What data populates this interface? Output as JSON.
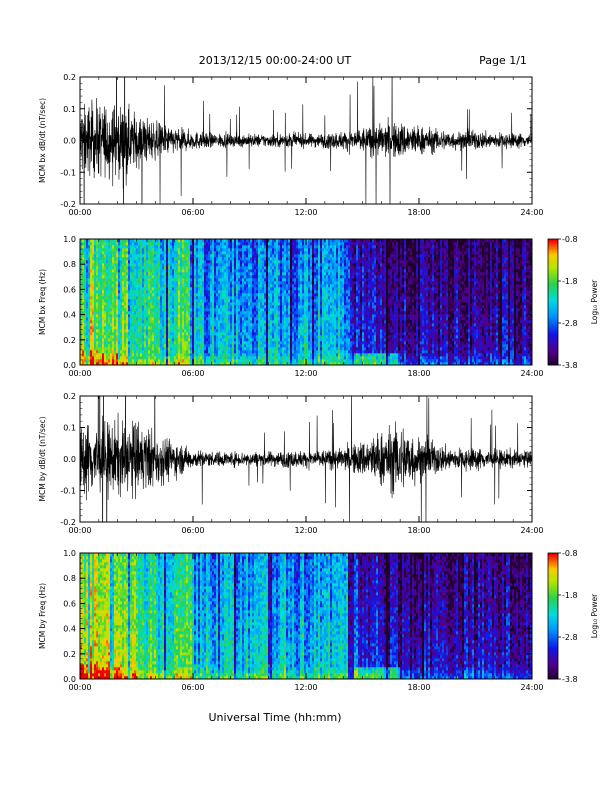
{
  "header": {
    "date_title": "2013/12/15  00:00-24:00 UT",
    "page_label": "Page 1/1"
  },
  "x_axis_title": "Universal Time (hh:mm)",
  "chart_data": [
    {
      "type": "line",
      "ylabel": "MCM bx dB/dt (nT/sec)",
      "xlim": [
        "00:00",
        "24:00"
      ],
      "x_ticks": [
        "00:00",
        "06:00",
        "12:00",
        "18:00",
        "24:00"
      ],
      "ylim": [
        -0.2,
        0.2
      ],
      "y_ticks": [
        "-0.2",
        "-0.1",
        "0.0",
        "0.1",
        "0.2"
      ],
      "envelope_hours": [
        0,
        1,
        2,
        3,
        4,
        5,
        6,
        7,
        8,
        9,
        10,
        11,
        12,
        13,
        14,
        15,
        16,
        17,
        18,
        19,
        20,
        21,
        22,
        23,
        24
      ],
      "envelope_amplitude": [
        0.2,
        0.2,
        0.2,
        0.15,
        0.1,
        0.07,
        0.05,
        0.04,
        0.035,
        0.035,
        0.035,
        0.04,
        0.035,
        0.04,
        0.05,
        0.07,
        0.09,
        0.1,
        0.08,
        0.06,
        0.05,
        0.05,
        0.045,
        0.04,
        0.04
      ]
    },
    {
      "type": "heatmap",
      "ylabel": "MCM bx Freq (Hz)",
      "xlim": [
        "00:00",
        "24:00"
      ],
      "x_ticks": [
        "00:00",
        "06:00",
        "12:00",
        "18:00",
        "24:00"
      ],
      "ylim": [
        0,
        1
      ],
      "y_ticks": [
        "0.0",
        "0.2",
        "0.4",
        "0.6",
        "0.8",
        "1.0"
      ],
      "colorbar_label": "Log₁₀ Power",
      "colorbar_ticks": [
        "-0.8",
        "-1.8",
        "-2.8",
        "-3.8"
      ],
      "color_range": [
        -3.8,
        -0.8
      ]
    },
    {
      "type": "line",
      "ylabel": "MCM by dB/dt (nT/sec)",
      "xlim": [
        "00:00",
        "24:00"
      ],
      "x_ticks": [
        "00:00",
        "06:00",
        "12:00",
        "18:00",
        "24:00"
      ],
      "ylim": [
        -0.2,
        0.2
      ],
      "y_ticks": [
        "-0.2",
        "-0.1",
        "0.0",
        "0.1",
        "0.2"
      ],
      "envelope_hours": [
        0,
        1,
        2,
        3,
        4,
        5,
        6,
        7,
        8,
        9,
        10,
        11,
        12,
        13,
        14,
        15,
        16,
        17,
        18,
        19,
        20,
        21,
        22,
        23,
        24
      ],
      "envelope_amplitude": [
        0.2,
        0.2,
        0.2,
        0.2,
        0.15,
        0.1,
        0.05,
        0.04,
        0.04,
        0.04,
        0.04,
        0.045,
        0.045,
        0.05,
        0.06,
        0.1,
        0.15,
        0.2,
        0.12,
        0.08,
        0.06,
        0.06,
        0.05,
        0.05,
        0.04
      ]
    },
    {
      "type": "heatmap",
      "ylabel": "MCM by Freq (Hz)",
      "xlim": [
        "00:00",
        "24:00"
      ],
      "x_ticks": [
        "00:00",
        "06:00",
        "12:00",
        "18:00",
        "24:00"
      ],
      "ylim": [
        0,
        1
      ],
      "y_ticks": [
        "0.0",
        "0.2",
        "0.4",
        "0.6",
        "0.8",
        "1.0"
      ],
      "colorbar_label": "Log₁₀ Power",
      "colorbar_ticks": [
        "-0.8",
        "-1.8",
        "-2.8",
        "-3.8"
      ],
      "color_range": [
        -3.8,
        -0.8
      ]
    }
  ]
}
